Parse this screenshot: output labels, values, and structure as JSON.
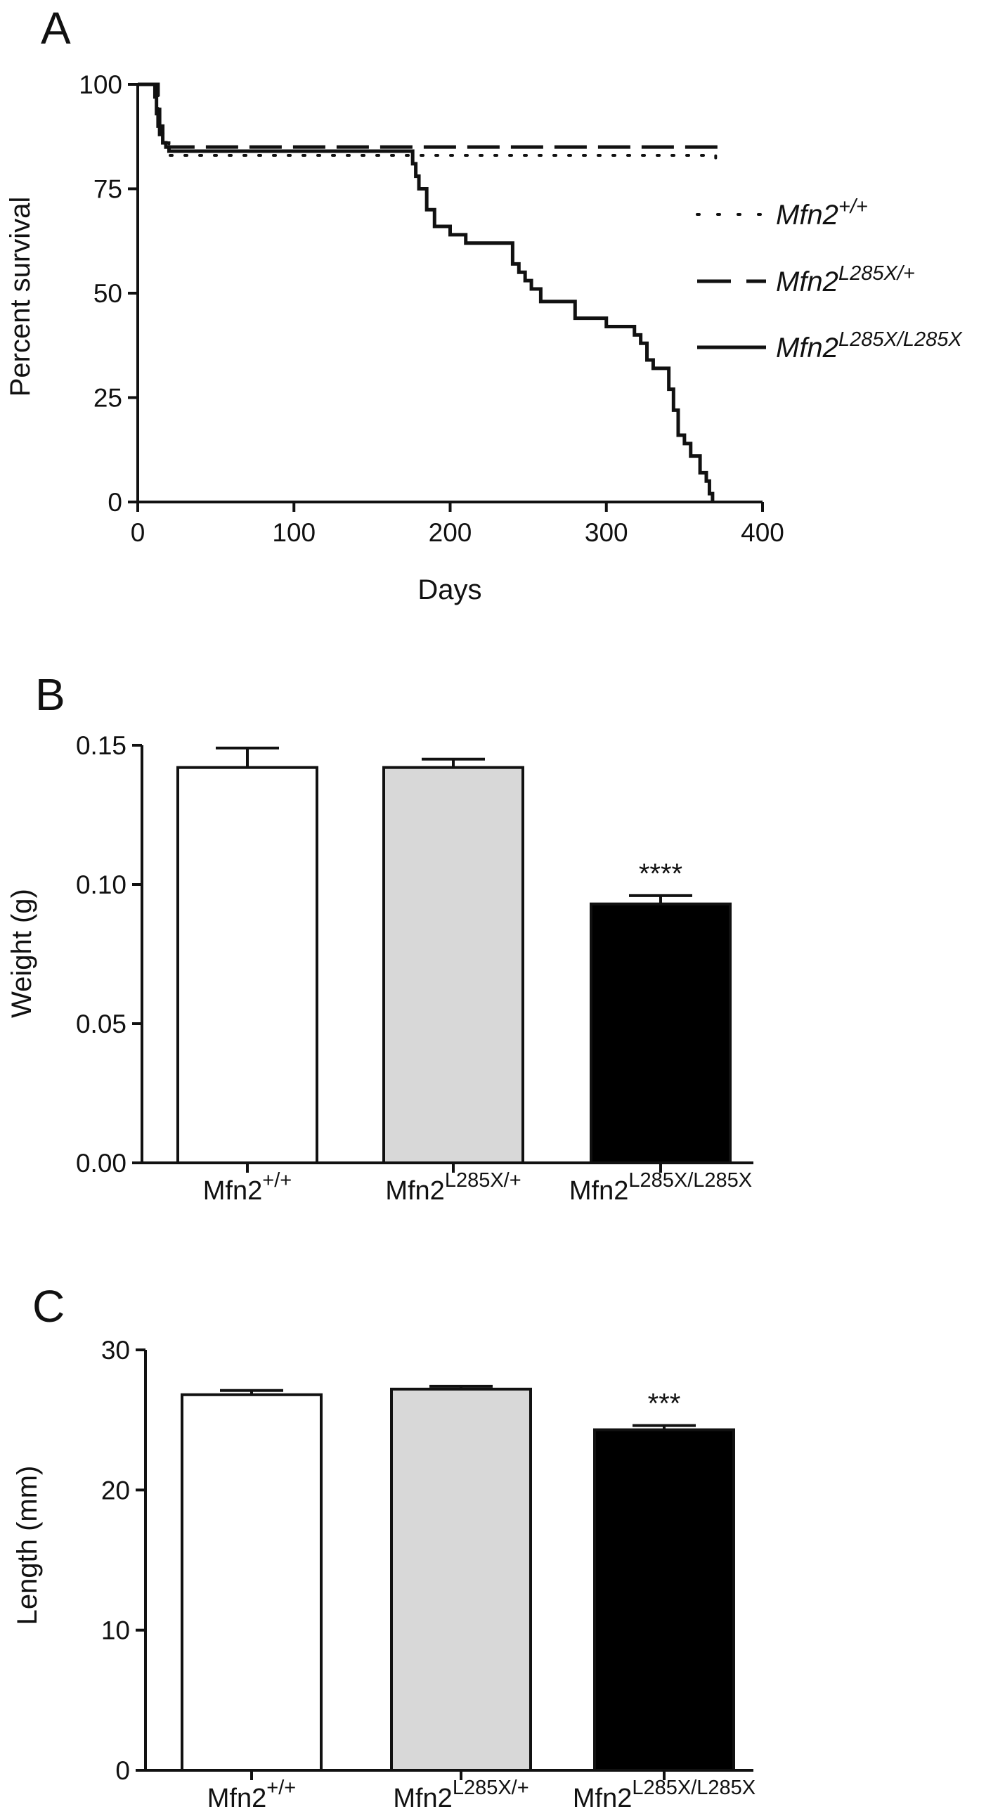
{
  "panels": [
    "A",
    "B",
    "C"
  ],
  "chart_data": [
    {
      "type": "line",
      "panel": "A",
      "xlabel": "Days",
      "ylabel": "Percent survival",
      "xlim": [
        0,
        400
      ],
      "ylim": [
        0,
        100
      ],
      "xticks": [
        0,
        100,
        200,
        300,
        400
      ],
      "yticks": [
        0,
        25,
        50,
        75,
        100
      ],
      "grid": false,
      "legend_position": "right",
      "series": [
        {
          "name": "Mfn2+/+",
          "legend_base": "Mfn2",
          "legend_sup": "+/+",
          "style": "dotted",
          "x": [
            0,
            12,
            13,
            14,
            16,
            20,
            370
          ],
          "y": [
            100,
            100,
            92,
            88,
            86,
            83,
            82
          ]
        },
        {
          "name": "Mfn2L285X/+",
          "legend_base": "Mfn2",
          "legend_sup": "L285X/+",
          "style": "dashed",
          "x": [
            0,
            12,
            13,
            14,
            16,
            18,
            370
          ],
          "y": [
            100,
            100,
            94,
            90,
            88,
            85,
            84
          ]
        },
        {
          "name": "Mfn2L285X/L285X",
          "legend_base": "Mfn2",
          "legend_sup": "L285X/L285X",
          "style": "solid",
          "x": [
            0,
            10,
            11,
            12,
            13,
            14,
            16,
            18,
            20,
            174,
            176,
            178,
            180,
            185,
            190,
            200,
            210,
            232,
            240,
            244,
            248,
            252,
            258,
            280,
            300,
            318,
            322,
            326,
            330,
            340,
            343,
            346,
            350,
            354,
            360,
            364,
            366,
            368
          ],
          "y": [
            100,
            100,
            97,
            93,
            90,
            88,
            86,
            85,
            84,
            84,
            81,
            78,
            75,
            70,
            66,
            64,
            62,
            62,
            57,
            55,
            53,
            51,
            48,
            44,
            42,
            40,
            38,
            34,
            32,
            27,
            22,
            16,
            14,
            11,
            7,
            5,
            2,
            0
          ]
        }
      ]
    },
    {
      "type": "bar",
      "panel": "B",
      "ylabel": "Weight (g)",
      "ylim": [
        0,
        0.15
      ],
      "yticks": [
        "0.00",
        "0.05",
        "0.10",
        "0.15"
      ],
      "categories": [
        {
          "base": "Mfn2",
          "sup": "+/+"
        },
        {
          "base": "Mfn2",
          "sup": "L285X/+"
        },
        {
          "base": "Mfn2",
          "sup": "L285X/L285X"
        }
      ],
      "values": [
        0.142,
        0.142,
        0.093
      ],
      "errors": [
        0.007,
        0.003,
        0.003
      ],
      "colors": [
        "#ffffff",
        "#d8d8d8",
        "#000000"
      ],
      "significance": [
        "",
        "",
        "****"
      ]
    },
    {
      "type": "bar",
      "panel": "C",
      "ylabel": "Length (mm)",
      "ylim": [
        0,
        30
      ],
      "yticks": [
        "0",
        "10",
        "20",
        "30"
      ],
      "categories": [
        {
          "base": "Mfn2",
          "sup": "+/+"
        },
        {
          "base": "Mfn2",
          "sup": "L285X/+"
        },
        {
          "base": "Mfn2",
          "sup": "L285X/L285X"
        }
      ],
      "values": [
        26.8,
        27.2,
        24.3
      ],
      "errors": [
        0.3,
        0.2,
        0.3
      ],
      "colors": [
        "#ffffff",
        "#d8d8d8",
        "#000000"
      ],
      "significance": [
        "",
        "",
        "***"
      ]
    }
  ]
}
